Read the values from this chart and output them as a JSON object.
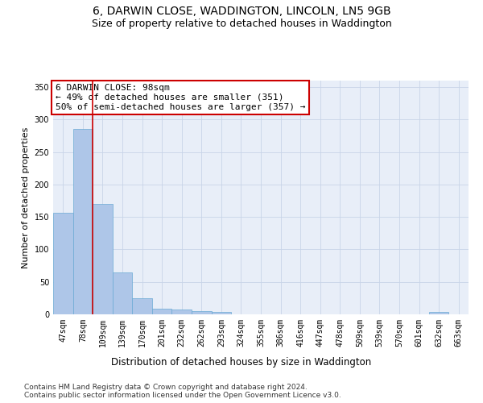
{
  "title": "6, DARWIN CLOSE, WADDINGTON, LINCOLN, LN5 9GB",
  "subtitle": "Size of property relative to detached houses in Waddington",
  "xlabel": "Distribution of detached houses by size in Waddington",
  "ylabel": "Number of detached properties",
  "bar_color": "#aec6e8",
  "bar_edge_color": "#6aaad4",
  "grid_color": "#c8d4e8",
  "background_color": "#e8eef8",
  "categories": [
    "47sqm",
    "78sqm",
    "109sqm",
    "139sqm",
    "170sqm",
    "201sqm",
    "232sqm",
    "262sqm",
    "293sqm",
    "324sqm",
    "355sqm",
    "386sqm",
    "416sqm",
    "447sqm",
    "478sqm",
    "509sqm",
    "539sqm",
    "570sqm",
    "601sqm",
    "632sqm",
    "663sqm"
  ],
  "values": [
    157,
    286,
    170,
    65,
    25,
    9,
    7,
    5,
    4,
    0,
    0,
    0,
    0,
    0,
    0,
    0,
    0,
    0,
    0,
    4,
    0
  ],
  "red_line_x": 1.5,
  "annotation_text": "6 DARWIN CLOSE: 98sqm\n← 49% of detached houses are smaller (351)\n50% of semi-detached houses are larger (357) →",
  "annotation_box_color": "#ffffff",
  "annotation_border_color": "#cc0000",
  "ylim": [
    0,
    360
  ],
  "yticks": [
    0,
    50,
    100,
    150,
    200,
    250,
    300,
    350
  ],
  "footer_text": "Contains HM Land Registry data © Crown copyright and database right 2024.\nContains public sector information licensed under the Open Government Licence v3.0.",
  "title_fontsize": 10,
  "subtitle_fontsize": 9,
  "xlabel_fontsize": 8.5,
  "ylabel_fontsize": 8,
  "tick_fontsize": 7,
  "annotation_fontsize": 8,
  "footer_fontsize": 6.5
}
